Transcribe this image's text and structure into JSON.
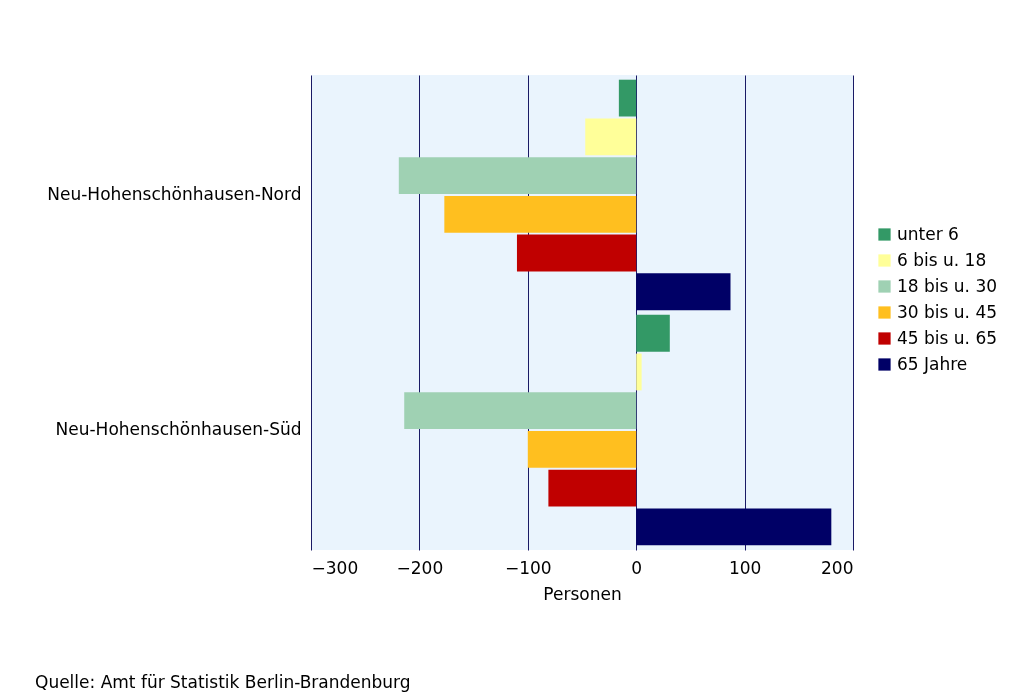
{
  "chart_data": {
    "type": "bar",
    "orientation": "horizontal",
    "xlabel": "Personen",
    "categories": [
      "Neu-Hohenschönhausen-Nord",
      "Neu-Hohenschönhausen-Süd"
    ],
    "series": [
      {
        "name": "unter 6",
        "color": "#339966",
        "values": [
          -16,
          31
        ]
      },
      {
        "name": "6 bis u. 18",
        "color": "#ffff99",
        "values": [
          -47,
          5
        ]
      },
      {
        "name": "18 bis u. 30",
        "color": "#9fd1b3",
        "values": [
          -219,
          -214
        ]
      },
      {
        "name": "30 bis u. 45",
        "color": "#ffbf1f",
        "values": [
          -177,
          -100
        ]
      },
      {
        "name": "45 bis u. 65",
        "color": "#c00000",
        "values": [
          -110,
          -81
        ]
      },
      {
        "name": "65 Jahre",
        "color": "#000066",
        "values": [
          87,
          180
        ]
      }
    ],
    "xlim": [
      -300,
      200
    ],
    "xticks": [
      -300,
      -200,
      -100,
      0,
      100,
      200
    ],
    "grid": "x",
    "legend": "right",
    "annotations": [
      "Quelle: Amt für Statistik Berlin-Brandenburg"
    ]
  }
}
